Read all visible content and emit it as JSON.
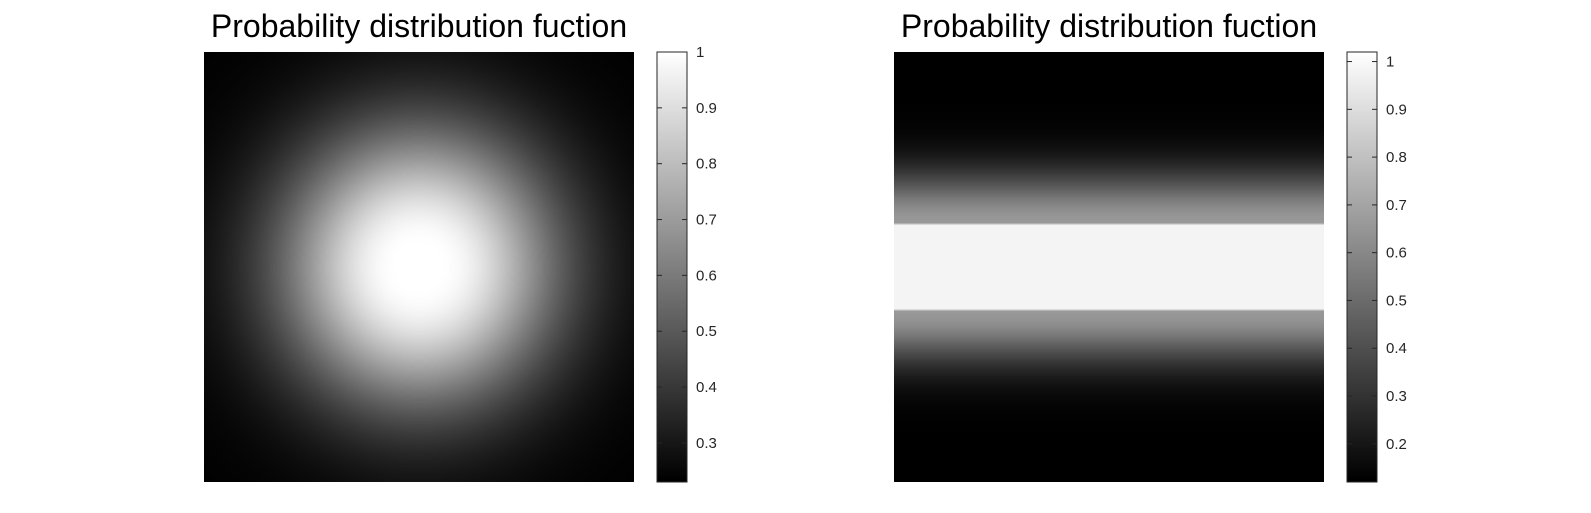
{
  "chart_data": [
    {
      "type": "heatmap",
      "title": "Probability distribution fuction",
      "pattern": "radial",
      "colormap": "gray",
      "peak": {
        "x": 0.5,
        "y": 0.5
      },
      "core_radius": 0.05,
      "decay": 0.28,
      "value_min": 0.23,
      "value_max": 1.0,
      "colorbar": {
        "lim": [
          0.23,
          1.0
        ],
        "ticks": [
          0.3,
          0.4,
          0.5,
          0.6,
          0.7,
          0.8,
          0.9,
          1
        ],
        "tick_labels": [
          "0.3",
          "0.4",
          "0.5",
          "0.6",
          "0.7",
          "0.8",
          "0.9",
          "1"
        ]
      }
    },
    {
      "type": "heatmap",
      "title": "Probability distribution fuction",
      "pattern": "horizontal-band",
      "colormap": "gray",
      "band": {
        "y_start": 0.4,
        "y_end": 0.6,
        "value": 0.98
      },
      "edge_value": 0.66,
      "decay": 0.12,
      "value_min": 0.12,
      "value_max": 1.02,
      "colorbar": {
        "lim": [
          0.12,
          1.02
        ],
        "ticks": [
          0.2,
          0.3,
          0.4,
          0.5,
          0.6,
          0.7,
          0.8,
          0.9,
          1
        ],
        "tick_labels": [
          "0.2",
          "0.3",
          "0.4",
          "0.5",
          "0.6",
          "0.7",
          "0.8",
          "0.9",
          "1"
        ]
      }
    }
  ]
}
